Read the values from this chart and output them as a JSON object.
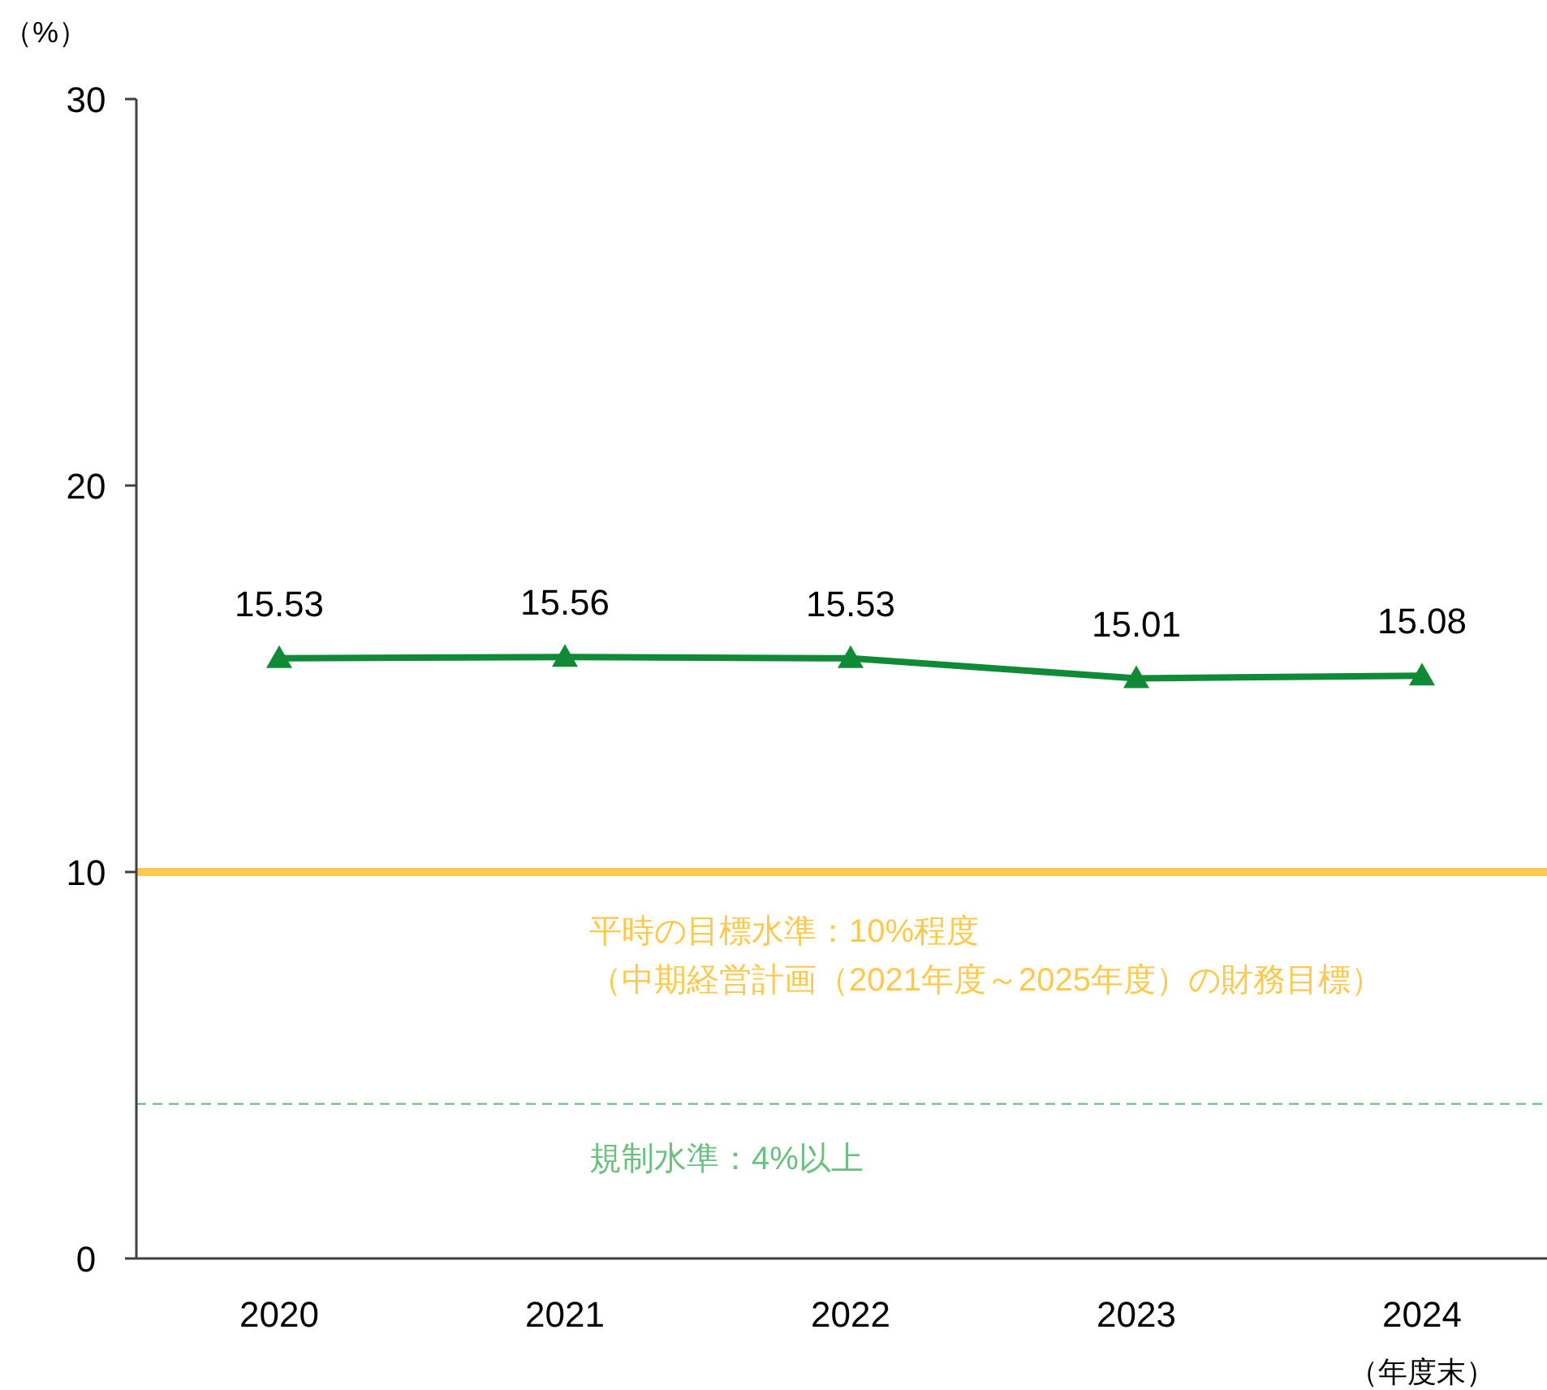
{
  "chart_data": {
    "type": "line",
    "ylabel": "（%）",
    "xlabel": "（年度末）",
    "categories": [
      "2020",
      "2021",
      "2022",
      "2023",
      "2024"
    ],
    "series": [
      {
        "color": "#108a36",
        "values": [
          15.53,
          15.56,
          15.53,
          15.01,
          15.08
        ]
      }
    ],
    "ylim": [
      0,
      30
    ],
    "yticks": [
      0,
      10,
      20,
      30
    ],
    "marker": "triangle",
    "line_style": "solid",
    "data_labels": true,
    "grid": false,
    "annotations": [
      "（中期経営計画（2021年度～2025年度）の財務目標）"
    ],
    "ref_lines": [
      {
        "axis": "y",
        "value": 10,
        "label": "平時の目標水準：10%程度",
        "color": "#ffc94d",
        "line_style": "solid"
      },
      {
        "axis": "y",
        "value": 4,
        "label": "規制水準：4%以上",
        "color": "#6cc07f",
        "line_style": "dashed"
      }
    ]
  }
}
